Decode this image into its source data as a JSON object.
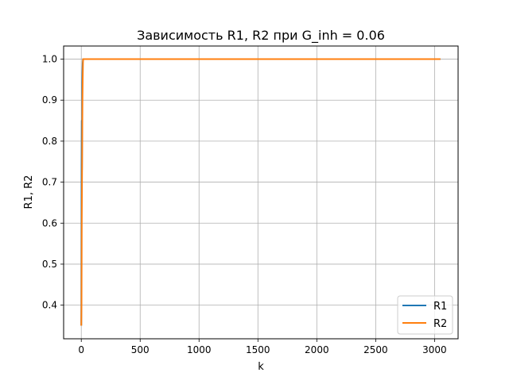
{
  "chart_data": {
    "type": "line",
    "title": "Зависимость R1, R2 при G_inh = 0.06",
    "xlabel": "k",
    "ylabel": "R1, R2",
    "xlim": [
      -150,
      3200
    ],
    "ylim": [
      0.318,
      1.032
    ],
    "xticks": [
      0,
      500,
      1000,
      1500,
      2000,
      2500,
      3000
    ],
    "yticks": [
      0.4,
      0.5,
      0.6,
      0.7,
      0.8,
      0.9,
      1.0
    ],
    "xtick_labels": [
      "0",
      "500",
      "1000",
      "1500",
      "2000",
      "2500",
      "3000"
    ],
    "ytick_labels": [
      "0.4",
      "0.5",
      "0.6",
      "0.7",
      "0.8",
      "0.9",
      "1.0"
    ],
    "grid": true,
    "legend_position": "lower-right",
    "series": [
      {
        "name": "R1",
        "color": "#1f77b4",
        "x": [
          0,
          2,
          4,
          6,
          8,
          10,
          12,
          15,
          20,
          30,
          3050
        ],
        "y": [
          0.35,
          0.74,
          0.85,
          0.73,
          0.93,
          0.97,
          0.99,
          1.0,
          1.0,
          1.0,
          1.0
        ]
      },
      {
        "name": "R2",
        "color": "#ff7f0e",
        "x": [
          0,
          2,
          4,
          6,
          8,
          10,
          12,
          15,
          20,
          30,
          3050
        ],
        "y": [
          0.35,
          0.4,
          0.6,
          0.7,
          0.8,
          0.9,
          0.95,
          1.0,
          1.0,
          1.0,
          1.0
        ]
      }
    ]
  }
}
